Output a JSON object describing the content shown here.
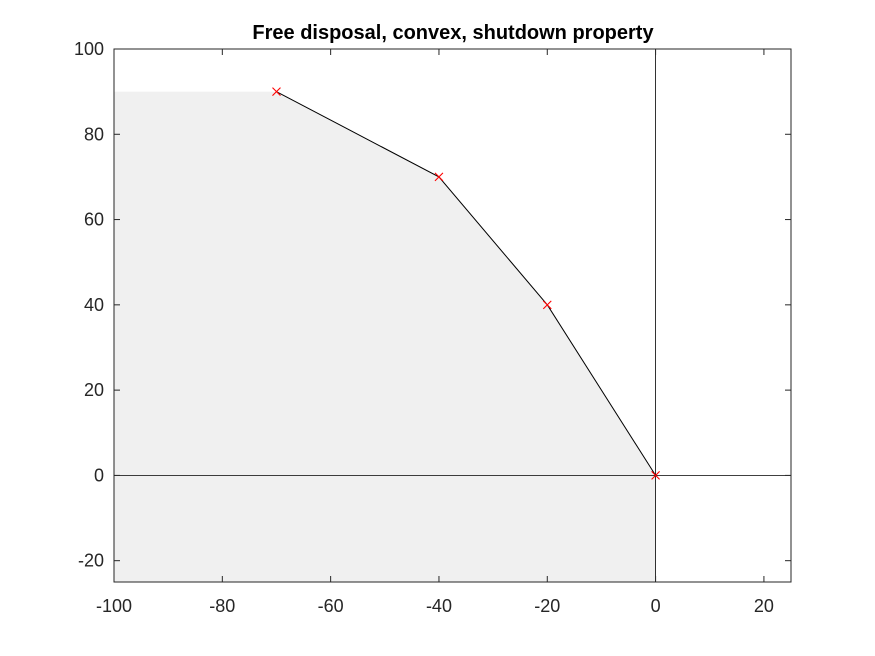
{
  "chart_data": {
    "type": "line",
    "title": "Free disposal, convex, shutdown property",
    "xlabel": "",
    "ylabel": "",
    "xlim": [
      -100,
      25
    ],
    "ylim": [
      -25,
      100
    ],
    "grid": false,
    "x_ticks": [
      -100,
      -80,
      -60,
      -40,
      -20,
      0,
      20
    ],
    "y_ticks": [
      -20,
      0,
      20,
      40,
      60,
      80,
      100
    ],
    "x_tick_labels": [
      "-100",
      "-80",
      "-60",
      "-40",
      "-20",
      "0",
      "20"
    ],
    "y_tick_labels": [
      "-20",
      "0",
      "20",
      "40",
      "60",
      "80",
      "100"
    ],
    "shaded_region": {
      "color": "#f0f0f0",
      "boundary": [
        [
          -100,
          90
        ],
        [
          -70,
          90
        ],
        [
          -40,
          70
        ],
        [
          -20,
          40
        ],
        [
          0,
          0
        ],
        [
          0,
          -25
        ],
        [
          -100,
          -25
        ]
      ]
    },
    "reference_lines": [
      {
        "orientation": "horizontal",
        "value": 0,
        "color": "#000000"
      },
      {
        "orientation": "vertical",
        "value": 0,
        "color": "#000000"
      }
    ],
    "series": [
      {
        "x": [
          -70,
          -40,
          -20,
          0
        ],
        "y": [
          90,
          70,
          40,
          0
        ],
        "line_color": "#000000",
        "marker": "x",
        "marker_color": "#ff0000"
      }
    ],
    "axis_color": "#262626"
  }
}
